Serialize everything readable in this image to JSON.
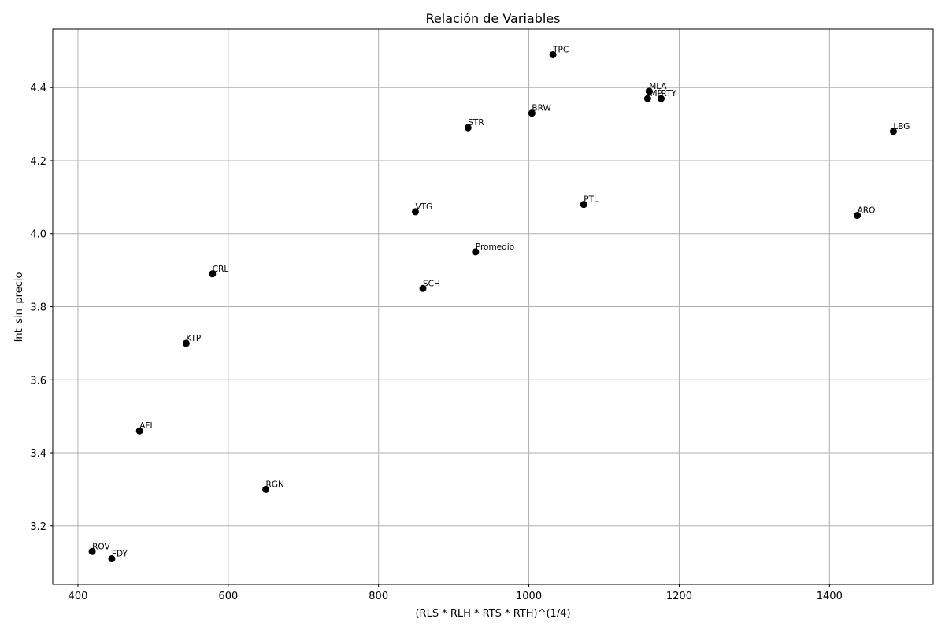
{
  "chart_data": {
    "type": "scatter",
    "title": "Relación de Variables",
    "x_label": "(RLS * RLH * RTS * RTH)^(1/4)",
    "y_label": "Int_sin_precio",
    "labels": [
      "TPC",
      "MLA",
      "IMP",
      "RTY",
      "BRW",
      "STR",
      "LBG",
      "PTL",
      "VTG",
      "ARO",
      "Promedio",
      "CRL",
      "SCH",
      "KTP",
      "AFI",
      "RGN",
      "ROV",
      "FDY"
    ],
    "x": [
      1032,
      1160,
      1158,
      1176,
      1004,
      919,
      1485,
      1073,
      849,
      1437,
      929,
      579,
      859,
      544,
      482,
      650,
      419,
      445
    ],
    "values": [
      4.49,
      4.39,
      4.37,
      4.37,
      4.33,
      4.29,
      4.28,
      4.08,
      4.06,
      4.05,
      3.95,
      3.89,
      3.85,
      3.7,
      3.46,
      3.3,
      3.13,
      3.11
    ],
    "color": "#000000",
    "xlim": [
      366.5,
      1538
    ],
    "ylim": [
      3.04,
      4.56
    ],
    "xticks": [
      400,
      600,
      800,
      1000,
      1200,
      1400
    ],
    "yticks": [
      {
        "value": 3.2,
        "label": "3.2"
      },
      {
        "value": 3.4,
        "label": "3.4"
      },
      {
        "value": 3.6,
        "label": "3.6"
      },
      {
        "value": 3.8,
        "label": "3.8"
      },
      {
        "value": 4.0,
        "label": "4.0"
      },
      {
        "value": 4.2,
        "label": "4.2"
      },
      {
        "value": 4.4,
        "label": "4.4"
      }
    ],
    "grid": true
  }
}
